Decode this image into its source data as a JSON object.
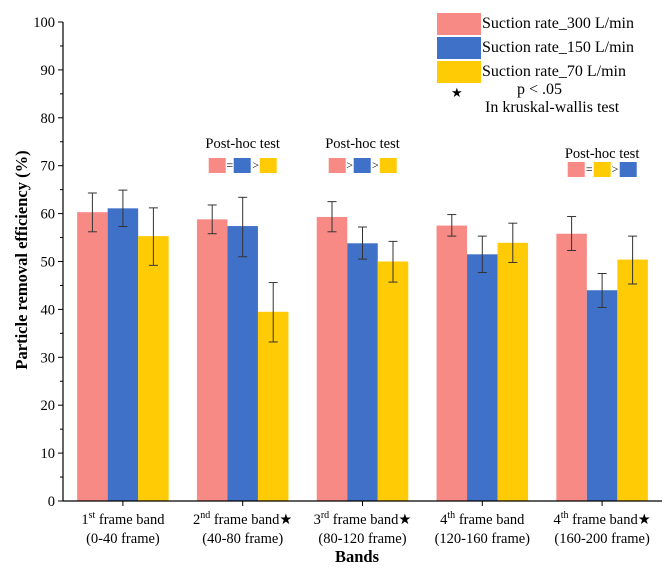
{
  "chart_data": {
    "type": "bar",
    "xlabel": "Bands",
    "ylabel": "Particle removal efficiency (%)",
    "ylim": [
      0,
      100
    ],
    "yticks": [
      0,
      10,
      20,
      30,
      40,
      50,
      60,
      70,
      80,
      90,
      100
    ],
    "categories": [
      {
        "num": "1",
        "sup": "st",
        "rest": " frame band",
        "star": "",
        "sub": "(0-40 frame)"
      },
      {
        "num": "2",
        "sup": "nd",
        "rest": " frame band",
        "star": "★",
        "sub": "(40-80 frame)"
      },
      {
        "num": "3",
        "sup": "rd",
        "rest": " frame band",
        "star": "★",
        "sub": "(80-120 frame)"
      },
      {
        "num": "4",
        "sup": "th",
        "rest": " frame band",
        "star": "",
        "sub": "(120-160 frame)"
      },
      {
        "num": "4",
        "sup": "th",
        "rest": " frame band",
        "star": "★",
        "sub": "(160-200 frame)"
      }
    ],
    "series": [
      {
        "name": "Suction rate_300 L/min",
        "color": "#f88a86",
        "values": [
          60.3,
          58.8,
          59.3,
          57.5,
          55.8
        ],
        "err_low": [
          56.2,
          55.8,
          56.2,
          55.3,
          52.3
        ],
        "err_high": [
          64.3,
          61.8,
          62.5,
          59.8,
          59.4
        ]
      },
      {
        "name": "Suction rate_150 L/min",
        "color": "#3f71c9",
        "values": [
          61.1,
          57.4,
          53.8,
          51.5,
          44.0
        ],
        "err_low": [
          57.3,
          51.0,
          50.5,
          47.7,
          40.4
        ],
        "err_high": [
          64.9,
          63.4,
          57.2,
          55.3,
          47.5
        ]
      },
      {
        "name": "Suction rate_70 L/min",
        "color": "#ffcb05",
        "values": [
          55.3,
          39.5,
          50.0,
          53.9,
          50.4
        ],
        "err_low": [
          49.2,
          33.2,
          45.7,
          49.8,
          45.3
        ],
        "err_high": [
          61.2,
          45.6,
          54.2,
          58.0,
          55.3
        ]
      }
    ],
    "legend": {
      "position": "top-right",
      "star_note_1": "p < .05",
      "star_note_2": "In kruskal-wallis test",
      "star_symbol": "★"
    },
    "annotations": [
      {
        "band": 1,
        "title": "Post-hoc test",
        "order": [
          "#f88a86",
          "#3f71c9",
          "#ffcb05"
        ],
        "ops": [
          "=",
          ">"
        ]
      },
      {
        "band": 2,
        "title": "Post-hoc test",
        "order": [
          "#f88a86",
          "#3f71c9",
          "#ffcb05"
        ],
        "ops": [
          ">",
          ">"
        ]
      },
      {
        "band": 4,
        "title": "Post-hoc test",
        "order": [
          "#f88a86",
          "#ffcb05",
          "#3f71c9"
        ],
        "ops": [
          "=",
          ">"
        ]
      }
    ]
  }
}
